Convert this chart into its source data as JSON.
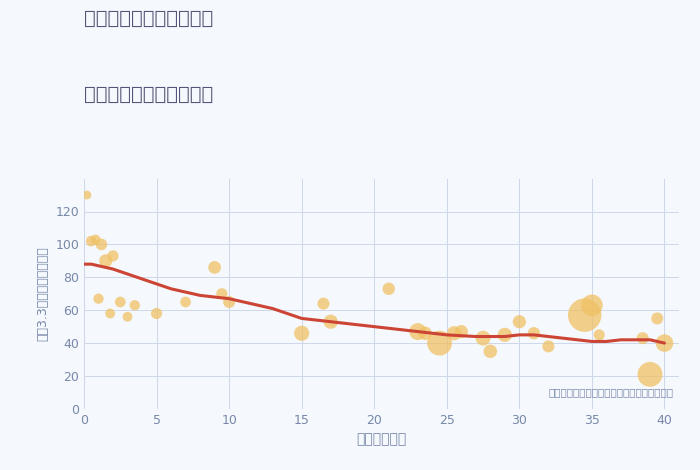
{
  "title_line1": "愛知県豊橋市新西浜町の",
  "title_line2": "築年数別中古戸建て価格",
  "xlabel": "築年数（年）",
  "ylabel": "坪（3.3㎡）単価（万円）",
  "annotation": "円の大きさは、取引のあった物件面積を示す",
  "xlim": [
    0,
    41
  ],
  "ylim": [
    0,
    140
  ],
  "xticks": [
    0,
    5,
    10,
    15,
    20,
    25,
    30,
    35,
    40
  ],
  "yticks": [
    0,
    20,
    40,
    60,
    80,
    100,
    120
  ],
  "background_color": "#f5f8fc",
  "plot_bg_color": "#f5f8fc",
  "grid_color": "#cdd8ea",
  "bubble_color": "#f0c060",
  "bubble_alpha": 0.72,
  "line_color": "#cc4433",
  "line_width": 2.2,
  "title_color": "#555577",
  "axis_color": "#7788aa",
  "annotation_color": "#7788aa",
  "scatter_x": [
    0.2,
    0.5,
    0.8,
    1.0,
    1.2,
    1.5,
    1.8,
    2.0,
    2.5,
    3.0,
    3.5,
    5.0,
    7.0,
    9.0,
    9.5,
    10.0,
    15.0,
    16.5,
    17.0,
    21.0,
    23.0,
    23.5,
    24.5,
    25.5,
    26.0,
    27.5,
    28.0,
    29.0,
    30.0,
    31.0,
    32.0,
    34.5,
    35.0,
    35.5,
    38.5,
    39.0,
    39.5,
    40.0
  ],
  "scatter_y": [
    130,
    102,
    103,
    67,
    100,
    90,
    58,
    93,
    65,
    56,
    63,
    58,
    65,
    86,
    70,
    65,
    46,
    64,
    53,
    73,
    47,
    46,
    40,
    46,
    47,
    43,
    35,
    45,
    53,
    46,
    38,
    57,
    63,
    45,
    43,
    21,
    55,
    40
  ],
  "scatter_size": [
    40,
    60,
    50,
    55,
    70,
    90,
    50,
    65,
    60,
    50,
    55,
    65,
    60,
    85,
    65,
    75,
    120,
    75,
    105,
    80,
    150,
    95,
    320,
    105,
    90,
    115,
    95,
    105,
    90,
    80,
    75,
    580,
    240,
    65,
    75,
    320,
    75,
    160
  ],
  "trend_x": [
    0,
    0.5,
    1,
    1.5,
    2,
    3,
    4,
    5,
    6,
    7,
    8,
    9,
    10,
    11,
    12,
    13,
    14,
    15,
    16,
    17,
    18,
    19,
    20,
    21,
    22,
    23,
    24,
    25,
    26,
    27,
    28,
    29,
    30,
    31,
    32,
    33,
    34,
    35,
    36,
    37,
    38,
    39,
    40
  ],
  "trend_y": [
    88,
    88,
    87,
    86,
    85,
    82,
    79,
    76,
    73,
    71,
    69,
    68,
    67,
    65,
    63,
    61,
    58,
    55,
    54,
    53,
    52,
    51,
    50,
    49,
    48,
    47,
    46,
    45,
    44.5,
    44,
    44,
    44,
    45,
    45,
    44,
    43,
    42,
    41,
    41,
    42,
    42,
    42,
    40
  ]
}
